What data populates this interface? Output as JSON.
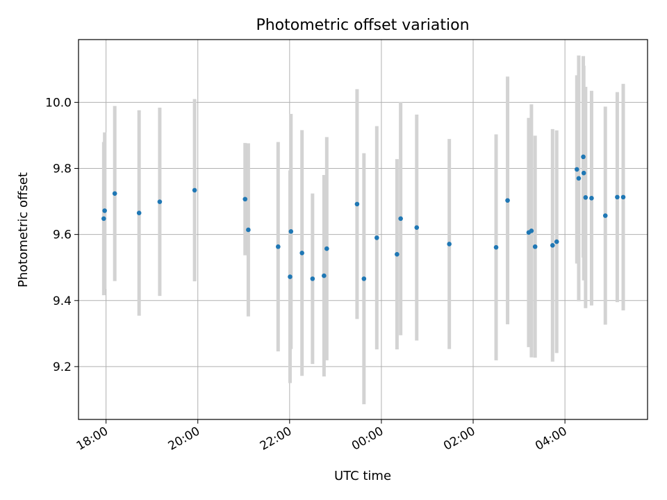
{
  "chart_data": {
    "type": "scatter",
    "title": "Photometric offset variation",
    "xlabel": "UTC time",
    "ylabel": "Photometric offset",
    "x_unit": "hours",
    "xlim": [
      17.4,
      29.8
    ],
    "ylim": [
      9.04,
      10.19
    ],
    "grid": true,
    "x_ticks": [
      {
        "value": 18,
        "label": "18:00"
      },
      {
        "value": 20,
        "label": "20:00"
      },
      {
        "value": 22,
        "label": "22:00"
      },
      {
        "value": 24,
        "label": "00:00"
      },
      {
        "value": 26,
        "label": "02:00"
      },
      {
        "value": 28,
        "label": "04:00"
      }
    ],
    "y_ticks": [
      {
        "value": 9.2,
        "label": "9.2"
      },
      {
        "value": 9.4,
        "label": "9.4"
      },
      {
        "value": 9.6,
        "label": "9.6"
      },
      {
        "value": 9.8,
        "label": "9.8"
      },
      {
        "value": 10.0,
        "label": "10.0"
      }
    ],
    "colors": {
      "marker": "#1f77b4",
      "errorbar": "#d3d3d3",
      "grid": "#b0b0b0"
    },
    "points": [
      {
        "x": 17.95,
        "y": 9.648,
        "err": 0.232
      },
      {
        "x": 17.97,
        "y": 9.672,
        "err": 0.237
      },
      {
        "x": 18.19,
        "y": 9.724,
        "err": 0.265
      },
      {
        "x": 18.72,
        "y": 9.665,
        "err": 0.311
      },
      {
        "x": 19.17,
        "y": 9.699,
        "err": 0.285
      },
      {
        "x": 19.93,
        "y": 9.734,
        "err": 0.276
      },
      {
        "x": 21.03,
        "y": 9.707,
        "err": 0.17
      },
      {
        "x": 21.1,
        "y": 9.614,
        "err": 0.262
      },
      {
        "x": 21.75,
        "y": 9.563,
        "err": 0.317
      },
      {
        "x": 22.01,
        "y": 9.472,
        "err": 0.322
      },
      {
        "x": 22.03,
        "y": 9.609,
        "err": 0.356
      },
      {
        "x": 22.27,
        "y": 9.544,
        "err": 0.372
      },
      {
        "x": 22.5,
        "y": 9.466,
        "err": 0.258
      },
      {
        "x": 22.75,
        "y": 9.475,
        "err": 0.305
      },
      {
        "x": 22.81,
        "y": 9.557,
        "err": 0.338
      },
      {
        "x": 23.47,
        "y": 9.692,
        "err": 0.348
      },
      {
        "x": 23.62,
        "y": 9.466,
        "err": 0.38
      },
      {
        "x": 23.9,
        "y": 9.59,
        "err": 0.338
      },
      {
        "x": 24.34,
        "y": 9.54,
        "err": 0.288
      },
      {
        "x": 24.42,
        "y": 9.648,
        "err": 0.353
      },
      {
        "x": 24.77,
        "y": 9.621,
        "err": 0.342
      },
      {
        "x": 25.48,
        "y": 9.571,
        "err": 0.318
      },
      {
        "x": 26.5,
        "y": 9.561,
        "err": 0.342
      },
      {
        "x": 26.75,
        "y": 9.703,
        "err": 0.375
      },
      {
        "x": 27.21,
        "y": 9.606,
        "err": 0.347
      },
      {
        "x": 27.27,
        "y": 9.611,
        "err": 0.383
      },
      {
        "x": 27.35,
        "y": 9.563,
        "err": 0.336
      },
      {
        "x": 27.73,
        "y": 9.567,
        "err": 0.352
      },
      {
        "x": 27.82,
        "y": 9.578,
        "err": 0.337
      },
      {
        "x": 28.26,
        "y": 9.797,
        "err": 0.285
      },
      {
        "x": 28.3,
        "y": 9.77,
        "err": 0.372
      },
      {
        "x": 28.4,
        "y": 9.835,
        "err": 0.305
      },
      {
        "x": 28.41,
        "y": 9.786,
        "err": 0.325
      },
      {
        "x": 28.45,
        "y": 9.712,
        "err": 0.335
      },
      {
        "x": 28.58,
        "y": 9.71,
        "err": 0.325
      },
      {
        "x": 28.88,
        "y": 9.657,
        "err": 0.33
      },
      {
        "x": 29.14,
        "y": 9.713,
        "err": 0.318
      },
      {
        "x": 29.27,
        "y": 9.713,
        "err": 0.343
      }
    ]
  }
}
